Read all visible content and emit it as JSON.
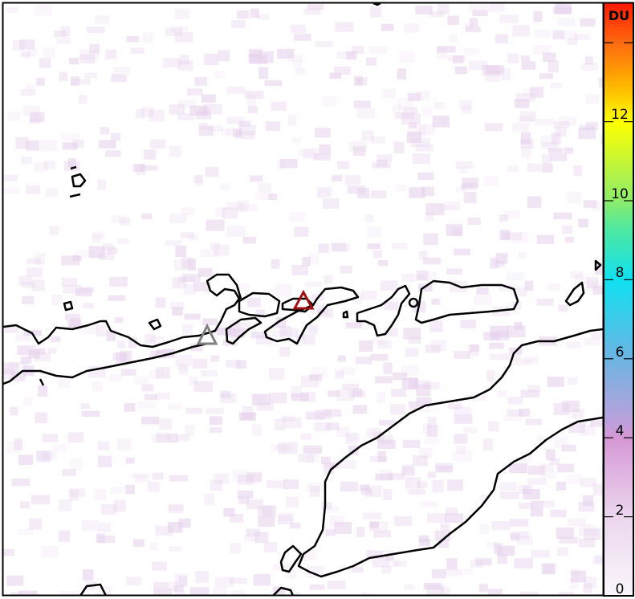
{
  "colorbar": {
    "unit": "DU",
    "tick_labels": [
      "0",
      "2",
      "4",
      "6",
      "8",
      "10",
      "12"
    ],
    "range": [
      0,
      15
    ],
    "colors": [
      "#f7f0f8",
      "#e8c8ea",
      "#d59ad8",
      "#7eaee0",
      "#2fc8e6",
      "#18e0ea",
      "#4fe4a0",
      "#9aeb5a",
      "#ffff00",
      "#ffc800",
      "#ff8a10",
      "#ff5010",
      "#ff2000"
    ]
  },
  "markers": [
    {
      "name": "volcano-marker-inactive",
      "color": "#808080"
    },
    {
      "name": "volcano-marker-active",
      "color": "#a01010"
    }
  ],
  "background_noise_color": "#e6d0ec"
}
